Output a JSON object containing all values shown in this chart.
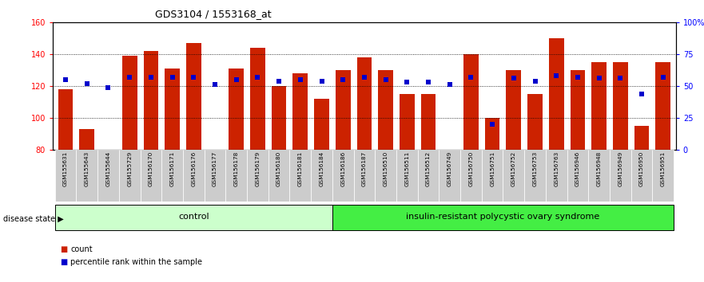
{
  "title": "GDS3104 / 1553168_at",
  "samples": [
    "GSM155631",
    "GSM155643",
    "GSM155644",
    "GSM155729",
    "GSM156170",
    "GSM156171",
    "GSM156176",
    "GSM156177",
    "GSM156178",
    "GSM156179",
    "GSM156180",
    "GSM156181",
    "GSM156184",
    "GSM156186",
    "GSM156187",
    "GSM156510",
    "GSM156511",
    "GSM156512",
    "GSM156749",
    "GSM156750",
    "GSM156751",
    "GSM156752",
    "GSM156753",
    "GSM156763",
    "GSM156946",
    "GSM156948",
    "GSM156949",
    "GSM156950",
    "GSM156951"
  ],
  "bar_values": [
    118,
    93,
    80,
    139,
    142,
    131,
    147,
    80,
    131,
    144,
    120,
    128,
    112,
    130,
    138,
    130,
    115,
    115,
    80,
    140,
    100,
    130,
    115,
    150,
    130,
    135,
    135,
    95,
    135
  ],
  "percentile_values": [
    55,
    52,
    49,
    57,
    57,
    57,
    57,
    51,
    55,
    57,
    54,
    55,
    54,
    55,
    57,
    55,
    53,
    53,
    51,
    57,
    20,
    56,
    54,
    58,
    57,
    56,
    56,
    44,
    57
  ],
  "n_control": 13,
  "ylim_left": [
    80,
    160
  ],
  "ylim_right": [
    0,
    100
  ],
  "yticks_left": [
    80,
    100,
    120,
    140,
    160
  ],
  "yticks_right": [
    0,
    25,
    50,
    75,
    100
  ],
  "ytick_labels_right": [
    "0",
    "25",
    "50",
    "75",
    "100%"
  ],
  "bar_color": "#CC2200",
  "dot_color": "#0000CC",
  "bar_bottom": 80,
  "control_bg": "#CCFFCC",
  "disease_bg": "#44DD44",
  "control_label": "control",
  "disease_label": "insulin-resistant polycystic ovary syndrome",
  "legend_count_label": "count",
  "legend_pct_label": "percentile rank within the sample",
  "disease_state_label": "disease state",
  "bg_color": "#FFFFFF"
}
